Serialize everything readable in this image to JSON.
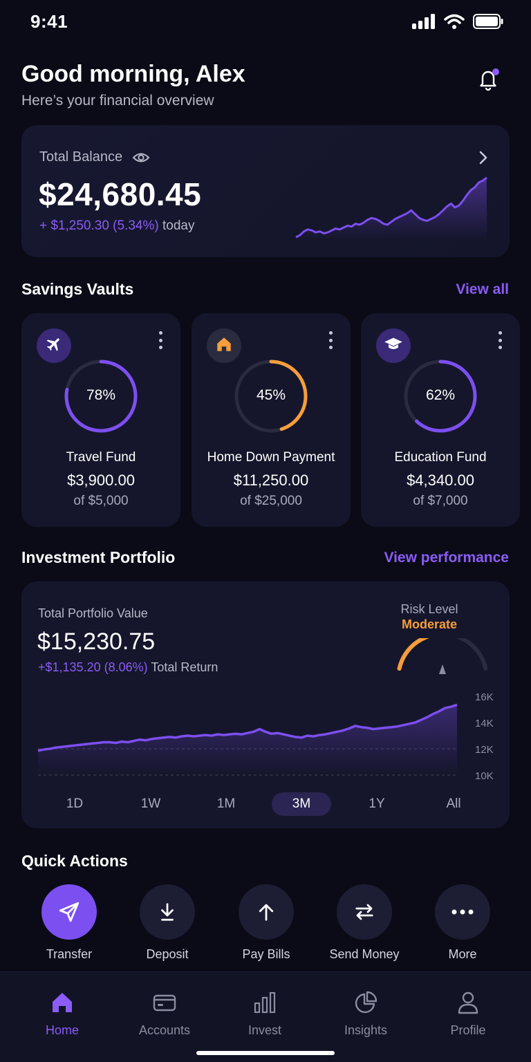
{
  "status_bar": {
    "time": "9:41"
  },
  "header": {
    "greeting": "Good morning, Alex",
    "subtitle": "Here’s your financial overview"
  },
  "balance": {
    "label": "Total Balance",
    "amount": "$24,680.45",
    "change": "+ $1,250.30 (5.34%)",
    "change_suffix": "today",
    "sparkline": [
      3,
      5,
      9,
      11,
      10,
      8,
      9,
      7,
      8,
      10,
      12,
      11,
      13,
      15,
      14,
      17,
      16,
      18,
      21,
      23,
      22,
      20,
      17,
      16,
      19,
      22,
      24,
      26,
      28,
      31,
      27,
      23,
      21,
      20,
      22,
      24,
      27,
      31,
      35,
      38,
      34,
      36,
      41,
      47,
      52,
      55,
      60,
      62,
      65
    ]
  },
  "savings": {
    "title": "Savings Vaults",
    "link": "View all",
    "vaults": [
      {
        "icon": "plane-icon",
        "name": "Travel Fund",
        "amount": "$3,900.00",
        "goal": "of $5,000",
        "percent_label": "78%",
        "progress": 0.78,
        "color": "#7c4ff0",
        "icon_bg": "#3a2a78"
      },
      {
        "icon": "home-icon",
        "name": "Home Down Payment",
        "amount": "$11,250.00",
        "goal": "of $25,000",
        "percent_label": "45%",
        "progress": 0.45,
        "color": "#f59e3b",
        "icon_bg": "#2a2b3f"
      },
      {
        "icon": "graduation-cap-icon",
        "name": "Education Fund",
        "amount": "$4,340.00",
        "goal": "of $7,000",
        "percent_label": "62%",
        "progress": 0.62,
        "color": "#7c4ff0",
        "icon_bg": "#3a2a78"
      }
    ]
  },
  "portfolio": {
    "title": "Investment Portfolio",
    "link": "View performance",
    "label": "Total Portfolio Value",
    "value": "$15,230.75",
    "return": "+$1,135.20 (8.06%)",
    "return_suffix": "Total Return",
    "risk_label": "Risk Level",
    "risk_value": "Moderate",
    "risk_level": 0.55,
    "axis_ticks": [
      "16K",
      "14K",
      "12K",
      "10K"
    ],
    "ranges": [
      "1D",
      "1W",
      "1M",
      "3M",
      "1Y",
      "All"
    ],
    "active_range": "3M"
  },
  "chart_data": {
    "type": "area",
    "title": "",
    "xlabel": "",
    "ylabel": "",
    "ylim": [
      10000,
      16000
    ],
    "y_ticks": [
      "10K",
      "12K",
      "14K",
      "16K"
    ],
    "series": [
      {
        "values": [
          11850,
          11950,
          12000,
          12100,
          12150,
          12200,
          12250,
          12300,
          12350,
          12400,
          12450,
          12500,
          12500,
          12450,
          12550,
          12500,
          12600,
          12700,
          12650,
          12750,
          12800,
          12850,
          12900,
          12850,
          12950,
          13000,
          12950,
          13000,
          13050,
          13000,
          13100,
          13050,
          13100,
          13150,
          13100,
          13200,
          13300,
          13500,
          13300,
          13150,
          13200,
          13100,
          13000,
          12900,
          12850,
          13000,
          12950,
          13050,
          13100,
          13200,
          13300,
          13400,
          13550,
          13750,
          13650,
          13600,
          13500,
          13550,
          13600,
          13650,
          13700,
          13800,
          13900,
          14000,
          14200,
          14400,
          14650,
          14850,
          15100,
          15200,
          15350
        ]
      }
    ]
  },
  "quick_actions": {
    "title": "Quick Actions",
    "items": [
      {
        "label": "Transfer",
        "icon": "send-icon"
      },
      {
        "label": "Deposit",
        "icon": "arrow-down-icon"
      },
      {
        "label": "Pay Bills",
        "icon": "arrow-up-icon"
      },
      {
        "label": "Send Money",
        "icon": "swap-icon"
      },
      {
        "label": "More",
        "icon": "more-icon"
      }
    ]
  },
  "nav": {
    "items": [
      {
        "label": "Home",
        "icon": "home-icon"
      },
      {
        "label": "Accounts",
        "icon": "card-icon"
      },
      {
        "label": "Invest",
        "icon": "bar-chart-icon"
      },
      {
        "label": "Insights",
        "icon": "pie-chart-icon"
      },
      {
        "label": "Profile",
        "icon": "user-icon"
      }
    ],
    "active": "Home"
  },
  "colors": {
    "accent": "#8b5cf6",
    "orange": "#f59e3b",
    "background": "#0a0b16",
    "card": "#15162b"
  }
}
